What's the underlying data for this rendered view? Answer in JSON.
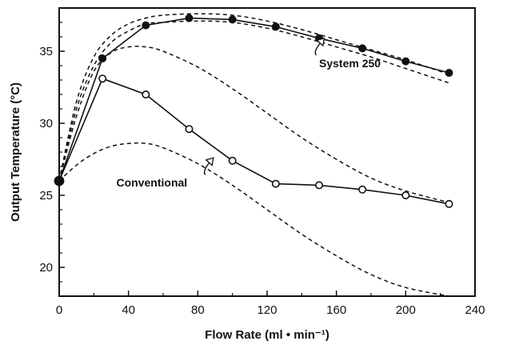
{
  "chart_data": {
    "type": "line",
    "xlabel": "Flow Rate (ml • min⁻¹)",
    "ylabel": "Output Temperature (°C)",
    "xlim": [
      0,
      240
    ],
    "ylim": [
      18,
      38
    ],
    "xticks": [
      0,
      40,
      80,
      120,
      160,
      200,
      240
    ],
    "yticks": [
      20,
      25,
      30,
      35
    ],
    "grid": false,
    "series": [
      {
        "name": "System 250",
        "marker": "filled-circle",
        "style": "solid",
        "x": [
          0,
          25,
          50,
          75,
          100,
          125,
          150,
          175,
          200,
          225
        ],
        "y": [
          26.0,
          34.5,
          36.8,
          37.3,
          37.2,
          36.7,
          35.9,
          35.2,
          34.3,
          33.5
        ]
      },
      {
        "name": "Conventional",
        "marker": "open-circle",
        "style": "solid",
        "x": [
          0,
          25,
          50,
          75,
          100,
          125,
          150,
          175,
          200,
          225
        ],
        "y": [
          26.0,
          33.1,
          32.0,
          29.6,
          27.4,
          25.8,
          25.7,
          25.4,
          25.0,
          24.4
        ]
      },
      {
        "style": "dashed",
        "x": [
          0,
          10,
          20,
          30,
          40,
          50,
          60,
          80,
          100,
          120,
          140,
          160,
          180,
          200,
          225
        ],
        "y": [
          26.0,
          31.5,
          34.6,
          36.1,
          36.9,
          37.3,
          37.5,
          37.6,
          37.5,
          37.1,
          36.5,
          35.8,
          35.1,
          34.4,
          33.4
        ]
      },
      {
        "style": "dashed",
        "x": [
          0,
          10,
          20,
          30,
          40,
          50,
          60,
          80,
          100,
          120,
          140,
          160,
          180,
          200,
          225
        ],
        "y": [
          26.0,
          31.0,
          34.0,
          35.6,
          36.4,
          36.9,
          37.0,
          37.1,
          37.0,
          36.6,
          36.0,
          35.3,
          34.6,
          33.8,
          32.8
        ]
      },
      {
        "style": "dashed",
        "x": [
          0,
          10,
          20,
          30,
          40,
          50,
          60,
          80,
          100,
          120,
          140,
          160,
          180,
          200,
          225
        ],
        "y": [
          26.0,
          30.5,
          33.6,
          34.9,
          35.3,
          35.3,
          35.0,
          33.9,
          32.4,
          30.7,
          29.0,
          27.5,
          26.2,
          25.3,
          24.5
        ]
      },
      {
        "style": "dashed",
        "x": [
          0,
          10,
          20,
          30,
          40,
          50,
          60,
          80,
          100,
          120,
          140,
          160,
          180,
          200,
          225
        ],
        "y": [
          26.0,
          27.1,
          27.9,
          28.4,
          28.6,
          28.6,
          28.3,
          27.2,
          25.7,
          24.0,
          22.3,
          20.8,
          19.5,
          18.6,
          18.0
        ]
      }
    ],
    "annotations": [
      {
        "text": "System 250",
        "x": 150,
        "y": 33.9,
        "arrow_to": [
          153,
          35.9
        ]
      },
      {
        "text": "Conventional",
        "x": 33,
        "y": 25.6,
        "arrow_to": [
          89,
          27.6
        ]
      }
    ]
  }
}
